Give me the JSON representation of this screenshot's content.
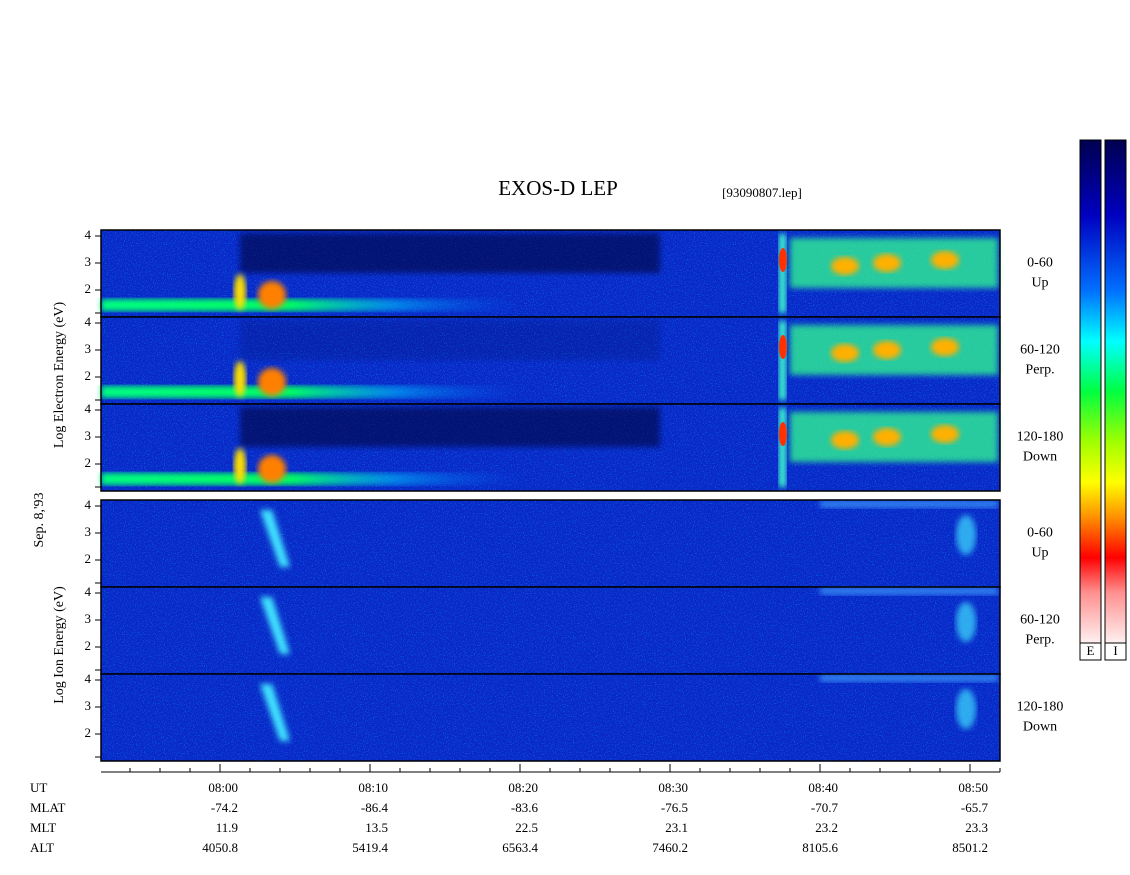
{
  "title": "EXOS-D LEP",
  "file": "[93090807.lep]",
  "date_label": "Sep. 8,'93",
  "electron_axis_label": "Log  Electron  Energy (eV)",
  "ion_axis_label": "Log  Ion  Energy (eV)",
  "yticks": [
    "4",
    "3",
    "2"
  ],
  "panels": [
    {
      "species": "electron",
      "range": "0-60",
      "direction": "Up"
    },
    {
      "species": "electron",
      "range": "60-120",
      "direction": "Perp."
    },
    {
      "species": "electron",
      "range": "120-180",
      "direction": "Down"
    },
    {
      "species": "ion",
      "range": "0-60",
      "direction": "Up"
    },
    {
      "species": "ion",
      "range": "60-120",
      "direction": "Perp."
    },
    {
      "species": "ion",
      "range": "120-180",
      "direction": "Down"
    }
  ],
  "ephemeris": [
    {
      "name": "UT",
      "values": [
        "08:00",
        "08:10",
        "08:20",
        "08:30",
        "08:40",
        "08:50"
      ]
    },
    {
      "name": "MLAT",
      "values": [
        "-74.2",
        "-86.4",
        "-83.6",
        "-76.5",
        "-70.7",
        "-65.7"
      ]
    },
    {
      "name": "MLT",
      "values": [
        "11.9",
        "13.5",
        "22.5",
        "23.1",
        "23.2",
        "23.3"
      ]
    },
    {
      "name": "ALT",
      "values": [
        "4050.8",
        "5419.4",
        "6563.4",
        "7460.2",
        "8105.6",
        "8501.2"
      ]
    }
  ],
  "colorbars": [
    "E",
    "I"
  ]
}
